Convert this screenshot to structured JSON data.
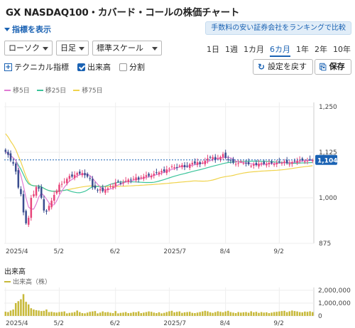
{
  "page_title": "GX NASDAQ100・カバード・コールの株価チャート",
  "indicator_toggle": "指標を表示",
  "promo_link": "手数料の安い証券会社をランキングで比較",
  "selects": {
    "chart_type": "ローソク",
    "interval": "日足",
    "scale": "標準スケール"
  },
  "periods": [
    {
      "label": "1日",
      "active": false
    },
    {
      "label": "1週",
      "active": false
    },
    {
      "label": "1カ月",
      "active": false
    },
    {
      "label": "6カ月",
      "active": true
    },
    {
      "label": "1年",
      "active": false
    },
    {
      "label": "2年",
      "active": false
    },
    {
      "label": "10年",
      "active": false
    }
  ],
  "options": {
    "technical": "テクニカル指標",
    "volume": "出来高",
    "split": "分割"
  },
  "buttons": {
    "reset": "設定を戻す",
    "save": "保存"
  },
  "legend": [
    {
      "label": "移5日",
      "color": "#e07bd4"
    },
    {
      "label": "移25日",
      "color": "#3ac49a"
    },
    {
      "label": "移75日",
      "color": "#f0d34c"
    }
  ],
  "colors": {
    "up": "#e8457a",
    "down": "#3a4d8f",
    "volume": "#c7b93a",
    "accent": "#1a62b3",
    "current_price_bg": "#1a62b3"
  },
  "volume_panel": {
    "title": "出来高",
    "legend": "出来高（株）",
    "y_ticks": [
      "2,000,000",
      "1,000,000",
      "0"
    ]
  },
  "chart_data": {
    "type": "candlestick",
    "price_ylim": [
      875,
      1250
    ],
    "price_ticks": [
      875,
      1000,
      1125,
      1250
    ],
    "price_tick_labels": [
      "875",
      "1,000",
      "1,125",
      "1,250"
    ],
    "current_price": 1104,
    "current_price_label": "1,104",
    "x_labels": [
      "2025/4",
      "5/2",
      "6/2",
      "2025/7",
      "8/4",
      "9/2"
    ],
    "x_label_index": [
      0,
      21,
      43,
      64,
      86,
      107
    ],
    "close": [
      1126,
      1118,
      1102,
      1094,
      1072,
      1028,
      1010,
      960,
      930,
      945,
      1000,
      1010,
      1030,
      1025,
      1000,
      965,
      962,
      978,
      992,
      1008,
      1020,
      1036,
      1038,
      1044,
      1052,
      1060,
      1058,
      1063,
      1068,
      1066,
      1068,
      1062,
      1058,
      1052,
      1030,
      1026,
      1020,
      1024,
      1018,
      1022,
      1026,
      1032,
      1032,
      1042,
      1045,
      1040,
      1042,
      1047,
      1050,
      1048,
      1052,
      1056,
      1050,
      1056,
      1058,
      1062,
      1060,
      1061,
      1066,
      1068,
      1070,
      1074,
      1072,
      1078,
      1080,
      1086,
      1084,
      1083,
      1088,
      1090,
      1084,
      1086,
      1092,
      1096,
      1094,
      1098,
      1092,
      1096,
      1102,
      1108,
      1110,
      1112,
      1104,
      1108,
      1112,
      1120,
      1110,
      1104,
      1102,
      1096,
      1093,
      1095,
      1100,
      1096,
      1094,
      1092,
      1088,
      1092,
      1090,
      1094,
      1095,
      1093,
      1092,
      1096,
      1095,
      1092,
      1096,
      1098,
      1096,
      1100,
      1095,
      1093,
      1098,
      1100,
      1102,
      1104,
      1103,
      1100,
      1102,
      1105,
      1104
    ],
    "volume_ylim": [
      0,
      2000000
    ],
    "volume": [
      330000,
      300000,
      420000,
      500000,
      1000000,
      1150000,
      1300000,
      1700000,
      1100000,
      900000,
      600000,
      500000,
      450000,
      420000,
      380000,
      400000,
      500000,
      300000,
      320000,
      280000,
      260000,
      300000,
      320000,
      350000,
      200000,
      240000,
      260000,
      300000,
      420000,
      300000,
      220000,
      200000,
      260000,
      320000,
      350000,
      380000,
      200000,
      260000,
      350000,
      280000,
      300000,
      250000,
      220000,
      380000,
      200000,
      240000,
      260000,
      300000,
      220000,
      240000,
      300000,
      280000,
      350000,
      220000,
      260000,
      300000,
      350000,
      320000,
      260000,
      220000,
      280000,
      200000,
      240000,
      300000,
      360000,
      400000,
      280000,
      320000,
      350000,
      240000,
      280000,
      300000,
      320000,
      240000,
      220000,
      260000,
      300000,
      350000,
      400000,
      360000,
      280000,
      240000,
      300000,
      360000,
      320000,
      280000,
      350000,
      400000,
      300000,
      260000,
      220000,
      300000,
      260000,
      280000,
      300000,
      250000,
      360000,
      280000,
      320000,
      240000,
      300000,
      260000,
      280000,
      220000,
      260000,
      300000,
      320000,
      350000,
      380000,
      400000,
      300000,
      360000,
      420000,
      380000,
      350000,
      300000,
      280000,
      340000,
      320000,
      360000,
      300000
    ]
  }
}
